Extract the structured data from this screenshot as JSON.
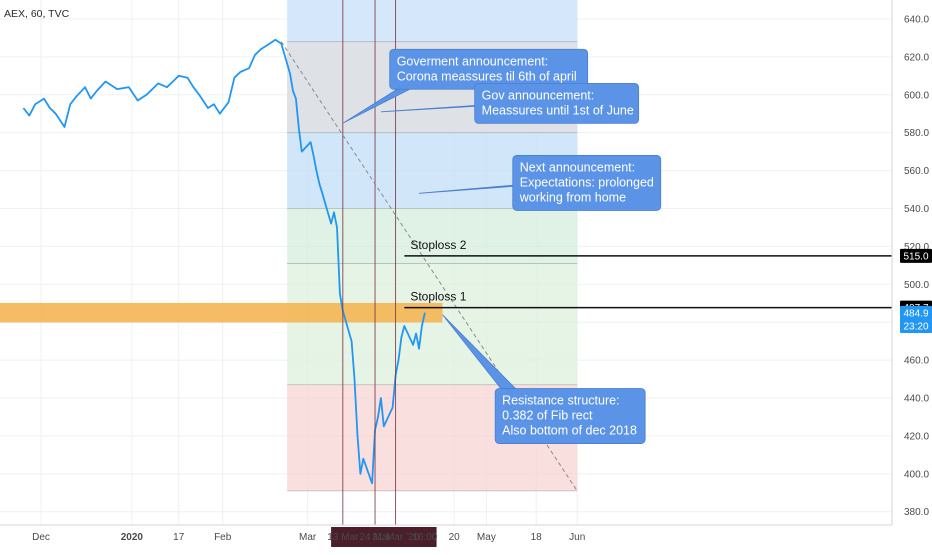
{
  "header": {
    "symbol": "AEX, 60, TVC"
  },
  "chart_data": {
    "type": "line",
    "title": "AEX, 60, TVC",
    "xlabel": "",
    "ylabel": "",
    "ylim": [
      373,
      650
    ],
    "y_ticks": [
      "380.0",
      "400.0",
      "420.0",
      "440.0",
      "460.0",
      "480.0",
      "500.0",
      "520.0",
      "540.0",
      "560.0",
      "580.0",
      "600.0",
      "620.0",
      "640.0"
    ],
    "x_ticks": [
      "Dec",
      "2020",
      "17",
      "Feb",
      "Mar",
      "13 Mar",
      "24 Mar",
      "31 Mar '20",
      "16:00",
      "20",
      "May",
      "18",
      "Jun"
    ],
    "grid": true,
    "series": [
      {
        "color": "#2196f3",
        "points": [
          [
            "2019-11-25",
            593
          ],
          [
            "2019-11-27",
            589
          ],
          [
            "2019-11-29",
            595
          ],
          [
            "2019-12-02",
            598
          ],
          [
            "2019-12-04",
            593
          ],
          [
            "2019-12-06",
            590
          ],
          [
            "2019-12-09",
            583
          ],
          [
            "2019-12-11",
            595
          ],
          [
            "2019-12-13",
            599
          ],
          [
            "2019-12-16",
            604
          ],
          [
            "2019-12-18",
            598
          ],
          [
            "2019-12-20",
            602
          ],
          [
            "2019-12-23",
            607
          ],
          [
            "2019-12-27",
            603
          ],
          [
            "2019-12-31",
            604
          ],
          [
            "2020-01-03",
            597
          ],
          [
            "2020-01-06",
            600
          ],
          [
            "2020-01-08",
            603
          ],
          [
            "2020-01-10",
            606
          ],
          [
            "2020-01-13",
            604
          ],
          [
            "2020-01-15",
            607
          ],
          [
            "2020-01-17",
            610
          ],
          [
            "2020-01-20",
            609
          ],
          [
            "2020-01-22",
            604
          ],
          [
            "2020-01-24",
            600
          ],
          [
            "2020-01-27",
            593
          ],
          [
            "2020-01-29",
            595
          ],
          [
            "2020-01-31",
            590
          ],
          [
            "2020-02-03",
            596
          ],
          [
            "2020-02-05",
            609
          ],
          [
            "2020-02-07",
            612
          ],
          [
            "2020-02-10",
            614
          ],
          [
            "2020-02-12",
            621
          ],
          [
            "2020-02-14",
            624
          ],
          [
            "2020-02-17",
            627
          ],
          [
            "2020-02-19",
            629
          ],
          [
            "2020-02-21",
            627
          ],
          [
            "2020-02-24",
            611
          ],
          [
            "2020-02-25",
            602
          ],
          [
            "2020-02-26",
            598
          ],
          [
            "2020-02-27",
            582
          ],
          [
            "2020-02-28",
            570
          ],
          [
            "2020-03-02",
            575
          ],
          [
            "2020-03-03",
            568
          ],
          [
            "2020-03-04",
            560
          ],
          [
            "2020-03-05",
            553
          ],
          [
            "2020-03-06",
            548
          ],
          [
            "2020-03-09",
            532
          ],
          [
            "2020-03-10",
            538
          ],
          [
            "2020-03-11",
            530
          ],
          [
            "2020-03-12",
            495
          ],
          [
            "2020-03-13",
            486
          ],
          [
            "2020-03-16",
            470
          ],
          [
            "2020-03-17",
            450
          ],
          [
            "2020-03-18",
            420
          ],
          [
            "2020-03-19",
            400
          ],
          [
            "2020-03-20",
            408
          ],
          [
            "2020-03-23",
            395
          ],
          [
            "2020-03-24",
            423
          ],
          [
            "2020-03-25",
            430
          ],
          [
            "2020-03-26",
            440
          ],
          [
            "2020-03-27",
            425
          ],
          [
            "2020-03-30",
            435
          ],
          [
            "2020-03-31",
            452
          ],
          [
            "2020-04-01",
            460
          ],
          [
            "2020-04-02",
            472
          ],
          [
            "2020-04-03",
            478
          ],
          [
            "2020-04-06",
            468
          ],
          [
            "2020-04-07",
            474
          ],
          [
            "2020-04-08",
            466
          ],
          [
            "2020-04-09",
            478
          ],
          [
            "2020-04-10",
            485
          ]
        ]
      }
    ],
    "projection_line": {
      "from": [
        "2020-02-21",
        628
      ],
      "to": [
        "2020-06-01",
        391
      ]
    },
    "price_tags": [
      {
        "value": 515,
        "label": "515.0",
        "bg": "#000000",
        "fg": "#ffffff"
      },
      {
        "value": 487.7,
        "label": "487.7",
        "bg": "#000000",
        "fg": "#ffffff"
      },
      {
        "value": 484.9,
        "label": "484.9",
        "bg": "#2196f3",
        "fg": "#ffffff"
      },
      {
        "value": 478,
        "label": "23:20",
        "bg": "#2196f3",
        "fg": "#ffffff"
      }
    ],
    "fib_levels": [
      {
        "value": 628,
        "color": "#e0e0e0"
      },
      {
        "value": 580,
        "color": "#c2dff7"
      },
      {
        "value": 540,
        "color": "#d6eddc"
      },
      {
        "value": 511,
        "color": "#def0de"
      },
      {
        "value": 447,
        "color": "#f8d4d4"
      },
      {
        "value": 391,
        "color": "#f8d4d4"
      }
    ],
    "resistance_zone": {
      "from": 483,
      "to": 487
    },
    "vertical_markers": [
      "2020-03-13",
      "2020-03-24",
      "2020-03-31"
    ],
    "stoplosses": [
      {
        "label": "Stoploss 2",
        "value": 515
      },
      {
        "label": "Stoploss 1",
        "value": 487.7
      }
    ],
    "annotations": [
      {
        "lines": [
          "Goverment announcement:",
          "Corona meassures til 6th of april"
        ]
      },
      {
        "lines": [
          "Gov announcement:",
          "Meassures until 1st of June"
        ]
      },
      {
        "lines": [
          "Next announcement:",
          "Expectations: prolonged",
          "working from home"
        ]
      },
      {
        "lines": [
          "Resistance structure:",
          "0.382 of Fib rect",
          "Also bottom of dec 2018"
        ]
      }
    ],
    "colors": {
      "line": "#2196f3",
      "callout": "#5b93e6",
      "resistance": "#f5b04a",
      "marker": "#7a3a4a",
      "date_badge": "#4a1e2a"
    }
  }
}
